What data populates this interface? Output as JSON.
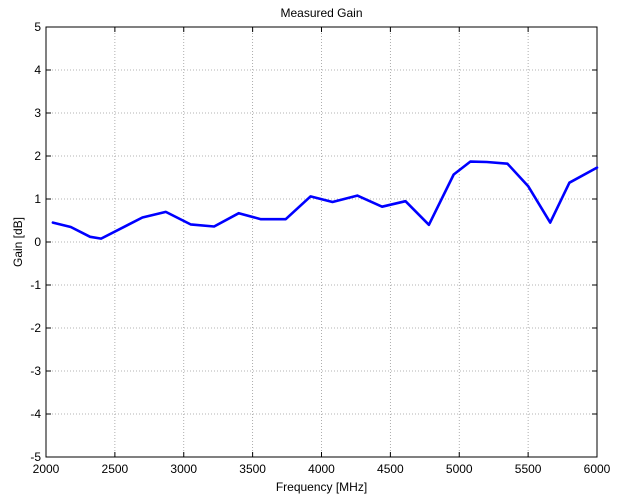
{
  "chart_data": {
    "type": "line",
    "title": "Measured Gain",
    "xlabel": "Frequency [MHz]",
    "ylabel": "Gain [dB]",
    "xlim": [
      2000,
      6000
    ],
    "ylim": [
      -5,
      5
    ],
    "xticks": [
      2000,
      2500,
      3000,
      3500,
      4000,
      4500,
      5000,
      5500,
      6000
    ],
    "yticks": [
      -5,
      -4,
      -3,
      -2,
      -1,
      0,
      1,
      2,
      3,
      4,
      5
    ],
    "grid": true,
    "series": [
      {
        "color": "#0000ff",
        "x": [
          2050,
          2180,
          2320,
          2400,
          2700,
          2870,
          3050,
          3220,
          3400,
          3560,
          3740,
          3920,
          4080,
          4260,
          4440,
          4610,
          4780,
          4960,
          5080,
          5200,
          5350,
          5500,
          5660,
          5800,
          6000
        ],
        "y": [
          0.45,
          0.35,
          0.12,
          0.08,
          0.57,
          0.7,
          0.41,
          0.36,
          0.67,
          0.53,
          0.53,
          1.06,
          0.93,
          1.08,
          0.82,
          0.95,
          0.4,
          1.57,
          1.87,
          1.86,
          1.82,
          1.3,
          0.45,
          1.38,
          1.73
        ]
      }
    ]
  }
}
